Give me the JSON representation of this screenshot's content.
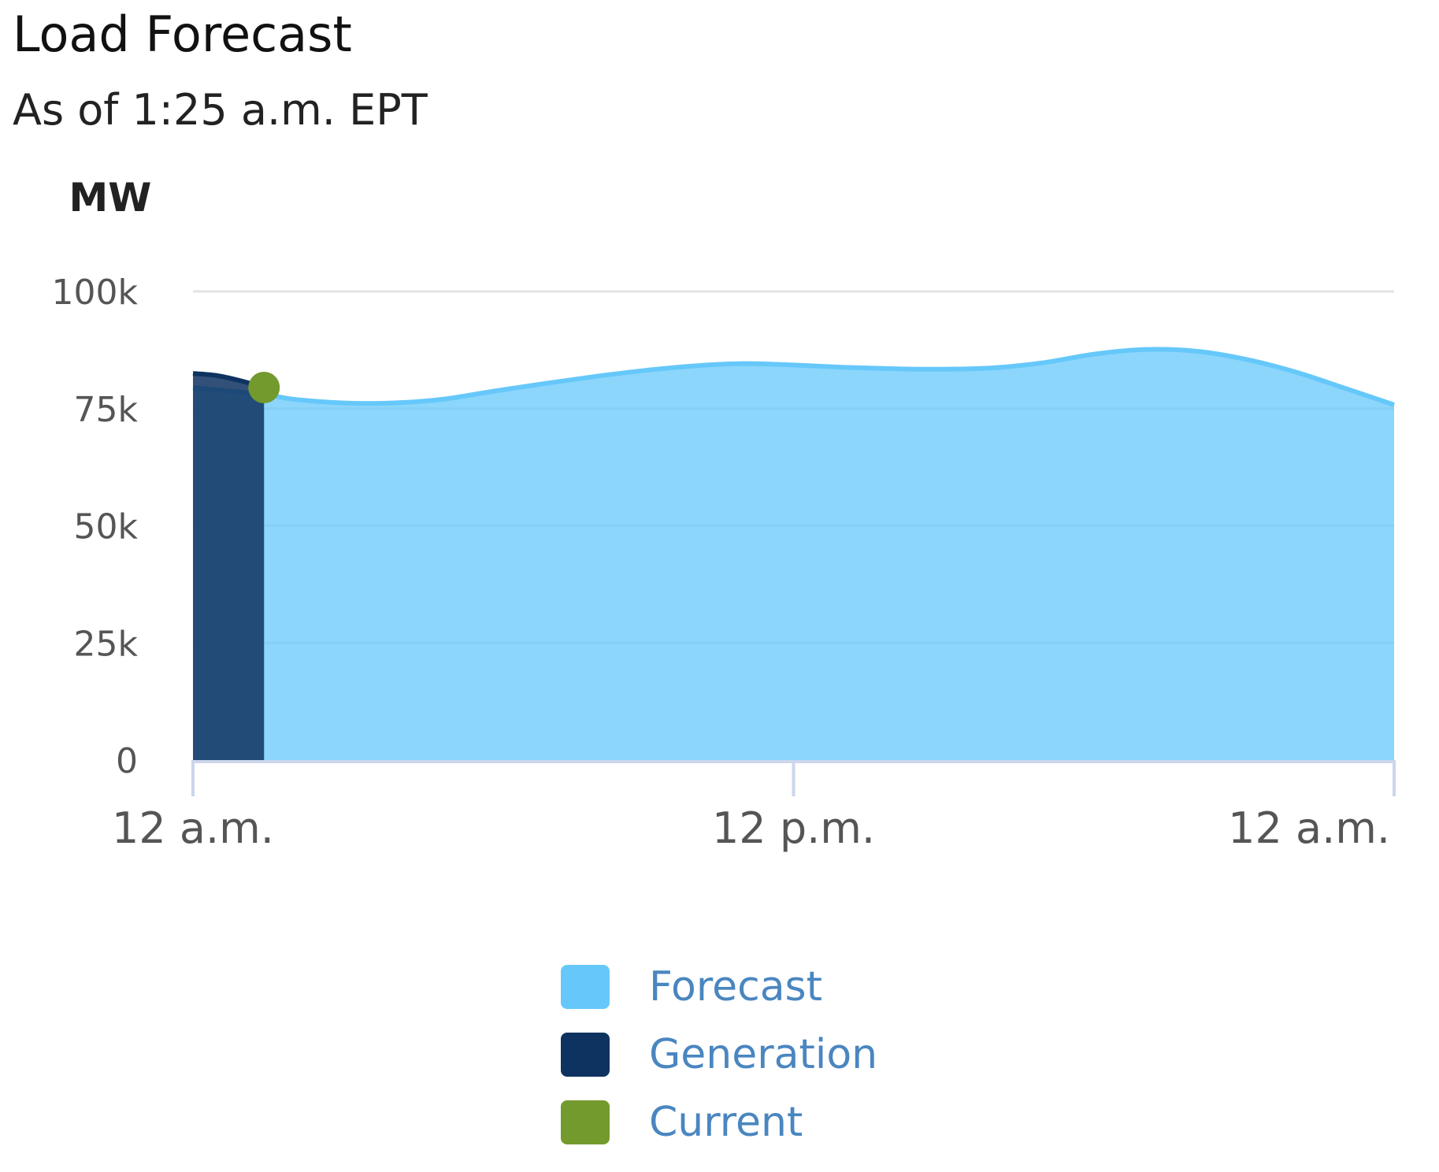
{
  "header": {
    "title": "Load Forecast",
    "subtitle": "As of 1:25 a.m. EPT"
  },
  "chart_data": {
    "type": "area",
    "ylabel": "MW",
    "ylim": [
      0,
      100000
    ],
    "y_ticks": [
      {
        "value": 0,
        "label": "0"
      },
      {
        "value": 25000,
        "label": "25k"
      },
      {
        "value": 50000,
        "label": "50k"
      },
      {
        "value": 75000,
        "label": "75k"
      },
      {
        "value": 100000,
        "label": "100k"
      }
    ],
    "x_range_hours": [
      0,
      24
    ],
    "x_ticks": [
      {
        "hour": 0,
        "label": "12 a.m."
      },
      {
        "hour": 12,
        "label": "12 p.m."
      },
      {
        "hour": 24,
        "label": "12 a.m."
      }
    ],
    "grid": true,
    "legend_placement": "bottom-center",
    "series": [
      {
        "name": "Forecast",
        "color": "#66c8fa",
        "x": [
          0,
          1.42,
          2,
          3,
          4,
          5,
          6,
          7,
          8,
          9,
          10,
          11,
          12,
          13,
          14,
          15,
          16,
          17,
          18,
          19,
          20,
          21,
          22,
          23,
          24
        ],
        "y": [
          79500,
          78000,
          77000,
          76200,
          76200,
          77000,
          78700,
          80300,
          81800,
          83100,
          84100,
          84600,
          84300,
          83800,
          83500,
          83400,
          83700,
          84800,
          86600,
          87600,
          87300,
          85600,
          82900,
          79400,
          75800
        ]
      },
      {
        "name": "Generation",
        "color": "#0f3360",
        "x": [
          0,
          0.5,
          1,
          1.42
        ],
        "y": [
          82500,
          82000,
          80800,
          79500
        ]
      }
    ],
    "current": {
      "name": "Current",
      "color": "#739a2d",
      "hour": 1.42,
      "value": 79500
    }
  }
}
